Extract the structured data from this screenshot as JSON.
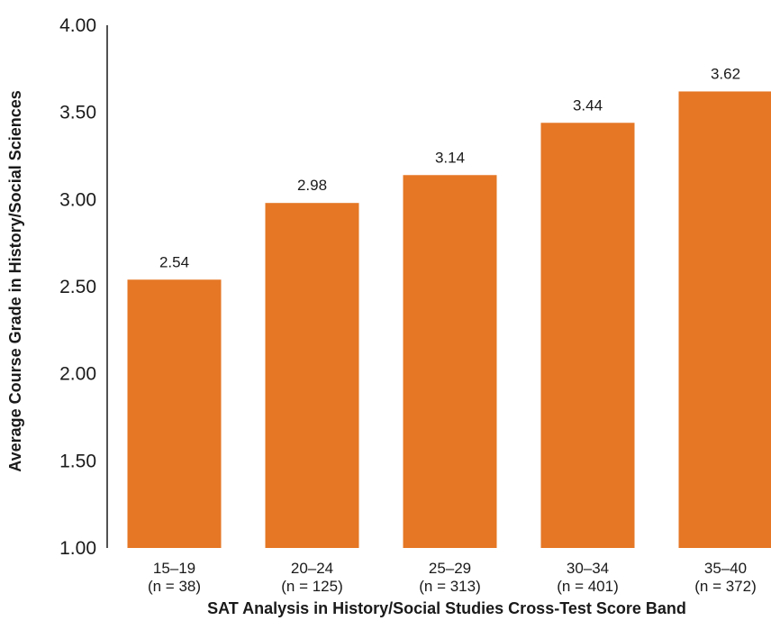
{
  "chart_data": {
    "type": "bar",
    "title": "",
    "xlabel": "SAT Analysis in History/Social Studies Cross-Test Score Band",
    "ylabel": "Average Course Grade in History/Social Sciences",
    "categories": [
      "15–19",
      "20–24",
      "25–29",
      "30–34",
      "35–40"
    ],
    "category_sublabels": [
      "(n = 38)",
      "(n = 125)",
      "(n = 313)",
      "(n = 401)",
      "(n = 372)"
    ],
    "values": [
      2.54,
      2.98,
      3.14,
      3.44,
      3.62
    ],
    "value_labels": [
      "2.54",
      "2.98",
      "3.14",
      "3.44",
      "3.62"
    ],
    "ylim": [
      1.0,
      4.0
    ],
    "yticks": [
      1.0,
      1.5,
      2.0,
      2.5,
      3.0,
      3.5,
      4.0
    ],
    "ytick_labels": [
      "1.00",
      "1.50",
      "2.00",
      "2.50",
      "3.00",
      "3.50",
      "4.00"
    ],
    "bar_color": "#E57725",
    "grid": false,
    "legend": "none"
  }
}
